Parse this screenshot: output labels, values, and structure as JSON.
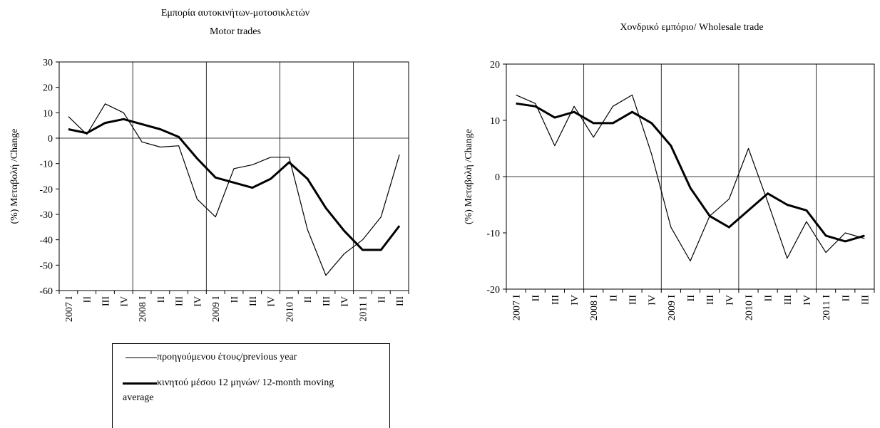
{
  "chart_data": [
    {
      "id": "left",
      "type": "line",
      "title_el": "Εμπορία αυτοκινήτων-μοτοσικλετών",
      "title_en": "Motor trades",
      "ylabel": "(%) Μεταβολή /Change",
      "xlabel": "",
      "ylim": [
        -60,
        30
      ],
      "yticks": [
        30,
        20,
        10,
        0,
        -10,
        -20,
        -30,
        -40,
        -50,
        -60
      ],
      "categories": [
        "2007 I",
        "II",
        "III",
        "IV",
        "2008 I",
        "II",
        "III",
        "IV",
        "2009 I",
        "II",
        "III",
        "IV",
        "2010 I",
        "II",
        "III",
        "IV",
        "2011 I",
        "II",
        "III"
      ],
      "year_starts": [
        4,
        8,
        12,
        16
      ],
      "grid": "vertical-at-years",
      "series": [
        {
          "name": "προηγούμενου έτους/previous year",
          "style": "thin",
          "values": [
            8.5,
            1.5,
            13.5,
            10,
            -1.5,
            -3.5,
            -3,
            -24,
            -31,
            -12,
            -10.5,
            -7.5,
            -7.5,
            -36,
            -54,
            -45.5,
            -40,
            -31,
            -6.5
          ]
        },
        {
          "name": "κινητού μέσου 12 μηνών/ 12-month moving average",
          "style": "thick",
          "values": [
            3.5,
            2,
            6,
            7.5,
            5.5,
            3.5,
            0.5,
            -8,
            -15.5,
            -17.5,
            -19.5,
            -16,
            -9.5,
            -16,
            -27.5,
            -36.5,
            -44,
            -44,
            -34.5
          ]
        }
      ]
    },
    {
      "id": "right",
      "type": "line",
      "title_el": "",
      "title_en": "Χονδρικό εμπόριο/ Wholesale trade",
      "ylabel": "(%) Μεταβολή /Change",
      "xlabel": "",
      "ylim": [
        -20,
        20
      ],
      "yticks": [
        20,
        10,
        0,
        -10,
        -20
      ],
      "categories": [
        "2007 I",
        "II",
        "III",
        "IV",
        "2008 I",
        "II",
        "III",
        "IV",
        "2009 I",
        "II",
        "III",
        "IV",
        "2010 I",
        "II",
        "III",
        "IV",
        "2011 I",
        "II",
        "III"
      ],
      "year_starts": [
        4,
        8,
        12,
        16
      ],
      "grid": "vertical-at-years",
      "series": [
        {
          "name": "προηγούμενου έτους/previous year",
          "style": "thin",
          "values": [
            14.5,
            13,
            5.5,
            12.5,
            7,
            12.5,
            14.5,
            4,
            -9,
            -15,
            -7,
            -4,
            5,
            -4.5,
            -14.5,
            -8,
            -13.5,
            -10,
            -11
          ]
        },
        {
          "name": "κινητού μέσου 12 μηνών/ 12-month moving average",
          "style": "thick",
          "values": [
            13,
            12.5,
            10.5,
            11.5,
            9.5,
            9.5,
            11.5,
            9.5,
            5.5,
            -2,
            -7,
            -9,
            -6,
            -3,
            -5,
            -6,
            -10.5,
            -11.5,
            -10.5
          ]
        }
      ]
    }
  ],
  "legend": {
    "items": [
      {
        "label": "προηγούμενου έτους/previous year",
        "style": "thin"
      },
      {
        "label": "κινητού μέσου 12 μηνών/ 12-month moving average",
        "style": "thick"
      }
    ]
  }
}
